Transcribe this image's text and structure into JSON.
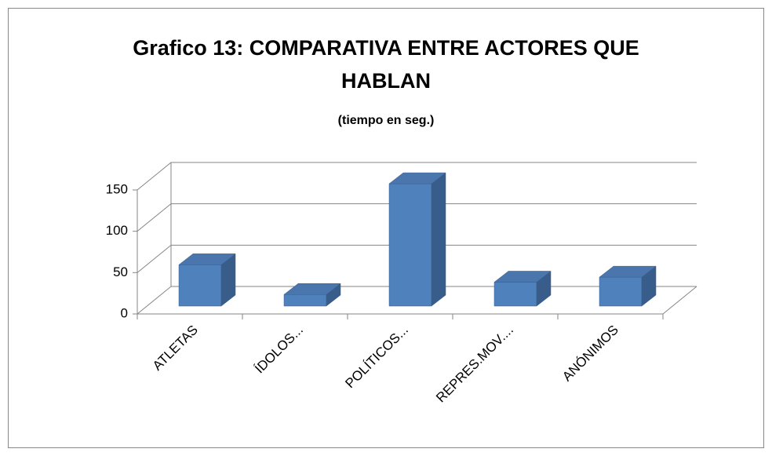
{
  "chart_data": {
    "type": "bar3d",
    "title": "Grafico 13: COMPARATIVA ENTRE ACTORES QUE HABLAN",
    "subtitle": "(tiempo en seg.)",
    "categories": [
      "ATLETAS",
      "ÍDOLOS...",
      "POLÍTICOS...",
      "REPRES.MOV....",
      "ANÓNIMOS"
    ],
    "values": [
      50,
      14,
      148,
      29,
      35
    ],
    "color": "#4f81bd",
    "ylim": [
      0,
      150
    ],
    "yticks": [
      0,
      50,
      100,
      150
    ],
    "grid": true
  }
}
